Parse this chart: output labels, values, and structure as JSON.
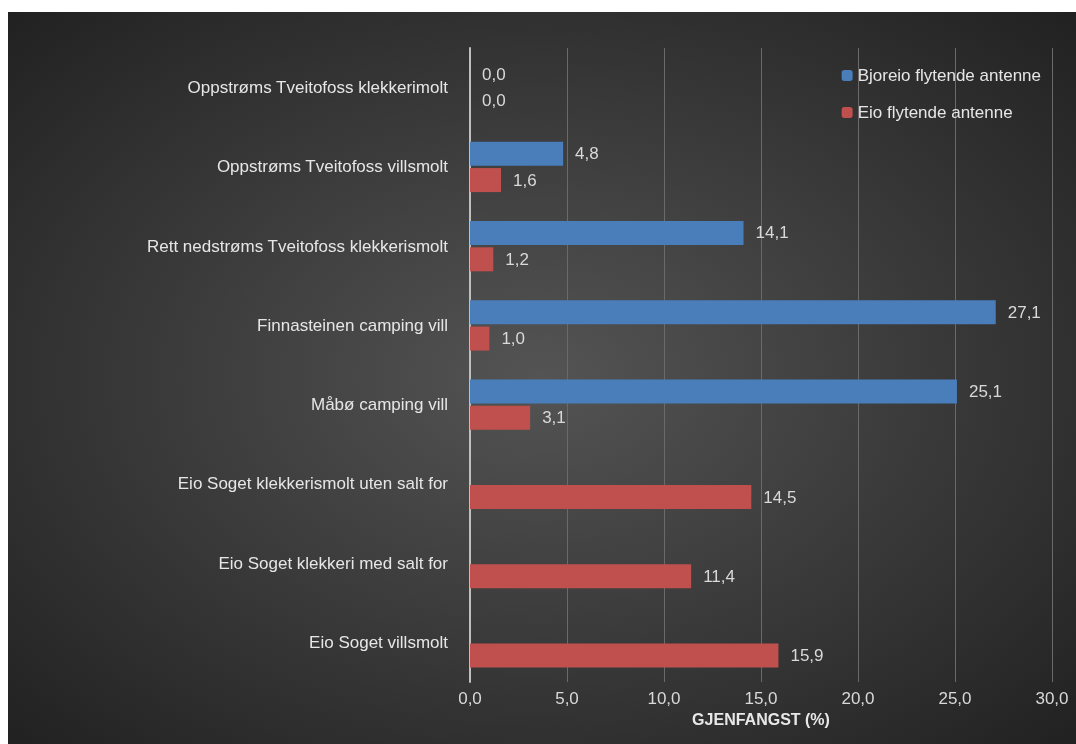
{
  "chart_data": {
    "type": "bar",
    "orientation": "horizontal",
    "xlabel": "GJENFANGST (%)",
    "categories": [
      "Oppstrøms Tveitofoss klekkerimolt",
      "Oppstrøms Tveitofoss villsmolt",
      "Rett nedstrøms Tveitofoss klekkerismolt",
      "Finnasteinen camping vill",
      "Måbø camping vill",
      "Eio Soget klekkerismolt uten salt for",
      "Eio Soget klekkeri med salt for",
      "Eio Soget villsmolt"
    ],
    "series": [
      {
        "name": "Bjoreio flytende antenne",
        "color": "#4a7ebb",
        "values": [
          0.0,
          4.8,
          14.1,
          27.1,
          25.1,
          null,
          null,
          null
        ],
        "value_labels": [
          "0,0",
          "4,8",
          "14,1",
          "27,1",
          "25,1",
          null,
          null,
          null
        ]
      },
      {
        "name": "Eio flytende antenne",
        "color": "#c0504d",
        "values": [
          0.0,
          1.6,
          1.2,
          1.0,
          3.1,
          14.5,
          11.4,
          15.9
        ],
        "value_labels": [
          "0,0",
          "1,6",
          "1,2",
          "1,0",
          "3,1",
          "14,5",
          "11,4",
          "15,9"
        ]
      }
    ],
    "xlim": [
      0,
      30
    ],
    "xticks": [
      {
        "value": 0,
        "label": "0,0"
      },
      {
        "value": 5,
        "label": "5,0"
      },
      {
        "value": 10,
        "label": "10,0"
      },
      {
        "value": 15,
        "label": "15,0"
      },
      {
        "value": 20,
        "label": "20,0"
      },
      {
        "value": 25,
        "label": "25,0"
      },
      {
        "value": 30,
        "label": "30,0"
      }
    ],
    "grid": "x",
    "legend": "top right"
  }
}
